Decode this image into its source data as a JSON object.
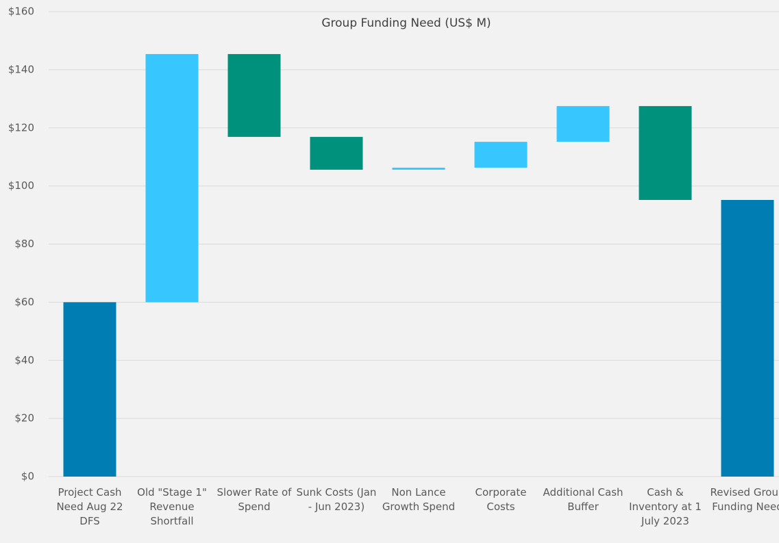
{
  "chart_data": {
    "type": "waterfall",
    "title": "Group Funding Need (US$ M)",
    "categories": [
      "Project Cash Need Aug 22 DFS",
      "Old \"Stage 1\" Revenue Shortfall",
      "Slower Rate of Spend",
      "Sunk Costs (Jan - Jun 2023)",
      "Non Lance Growth Spend",
      "Corporate Costs",
      "Additional Cash Buffer",
      "Cash & Inventory at 1 July 2023",
      "Revised Group Funding Need"
    ],
    "values": [
      60,
      85.4,
      -28.5,
      -11.3,
      0.7,
      8.9,
      12.3,
      -32.3,
      95.2
    ],
    "measures": [
      "absolute",
      "relative",
      "relative",
      "relative",
      "relative",
      "relative",
      "relative",
      "relative",
      "total"
    ],
    "colors": {
      "total": "#007db3",
      "increase": "#38c6ff",
      "decrease": "#00917c"
    },
    "ylim": [
      0,
      160
    ],
    "yticks": [
      {
        "value": 0,
        "label": "$0"
      },
      {
        "value": 20,
        "label": "$20"
      },
      {
        "value": 40,
        "label": "$40"
      },
      {
        "value": 60,
        "label": "$60"
      },
      {
        "value": 80,
        "label": "$80"
      },
      {
        "value": 100,
        "label": "$100"
      },
      {
        "value": 120,
        "label": "$120"
      },
      {
        "value": 140,
        "label": "$140"
      },
      {
        "value": 160,
        "label": "$160"
      }
    ],
    "grid": true
  }
}
